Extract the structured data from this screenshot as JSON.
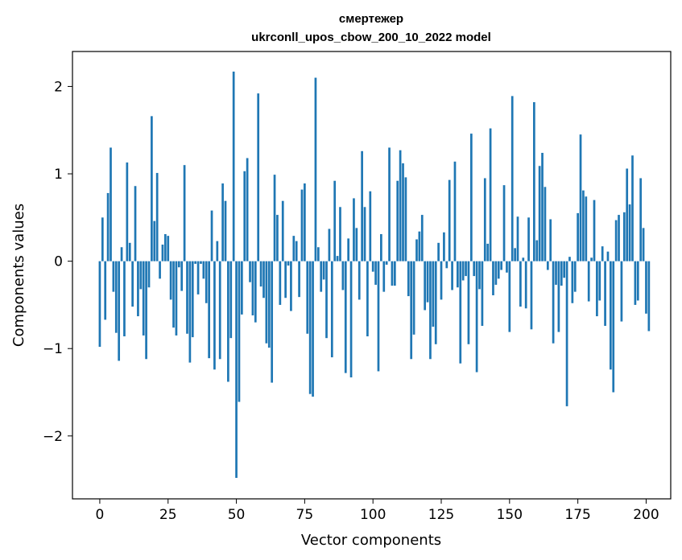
{
  "chart_data": {
    "type": "bar",
    "title": "смертежер",
    "subtitle": "ukrconll_upos_cbow_200_10_2022 model",
    "xlabel": "Vector components",
    "ylabel": "Components values",
    "xlim": [
      -10,
      209
    ],
    "ylim": [
      -2.72,
      2.4
    ],
    "xticks": [
      0,
      25,
      50,
      75,
      100,
      125,
      150,
      175,
      200
    ],
    "yticks": [
      -2,
      -1,
      0,
      1,
      2
    ],
    "ytick_labels": [
      "−2",
      "−1",
      "0",
      "1",
      "2"
    ],
    "bar_color": "#1f77b4",
    "grid": false,
    "legend": "none",
    "values": [
      -0.98,
      0.5,
      -0.67,
      0.78,
      1.3,
      -0.35,
      -0.82,
      -1.14,
      0.16,
      -0.86,
      1.13,
      0.21,
      -0.52,
      0.86,
      -0.63,
      -0.32,
      -0.85,
      -1.12,
      -0.3,
      1.66,
      0.46,
      1.01,
      -0.2,
      0.19,
      0.31,
      0.29,
      -0.44,
      -0.76,
      -0.85,
      -0.07,
      -0.34,
      1.1,
      -0.83,
      -1.16,
      -0.87,
      -0.03,
      -0.38,
      -0.03,
      -0.2,
      -0.48,
      -1.11,
      0.58,
      -1.24,
      0.23,
      -1.12,
      0.89,
      0.69,
      -1.38,
      -0.88,
      2.17,
      -2.48,
      -1.61,
      -0.61,
      1.03,
      1.18,
      -0.24,
      -0.62,
      -0.7,
      1.92,
      -0.29,
      -0.42,
      -0.94,
      -0.99,
      -1.39,
      0.99,
      0.53,
      -0.5,
      0.69,
      -0.42,
      -0.05,
      -0.57,
      0.29,
      0.23,
      -0.41,
      0.82,
      0.89,
      -0.83,
      -1.52,
      -1.55,
      2.1,
      0.16,
      -0.35,
      -0.21,
      -0.88,
      0.37,
      -1.1,
      0.92,
      0.06,
      0.62,
      -0.33,
      -1.28,
      0.26,
      -1.33,
      0.72,
      0.38,
      -0.44,
      1.26,
      0.62,
      -0.86,
      0.8,
      -0.12,
      -0.27,
      -1.26,
      0.31,
      -0.35,
      -0.04,
      1.3,
      -0.28,
      -0.28,
      0.92,
      1.27,
      1.12,
      0.96,
      -0.4,
      -1.12,
      -0.84,
      0.25,
      0.34,
      0.53,
      -0.56,
      -0.47,
      -1.12,
      -0.75,
      -0.95,
      0.21,
      -0.44,
      0.33,
      -0.08,
      0.93,
      -0.33,
      1.14,
      -0.3,
      -1.17,
      -0.22,
      -0.17,
      -0.95,
      1.46,
      -0.17,
      -1.27,
      -0.32,
      -0.74,
      0.95,
      0.2,
      1.52,
      -0.39,
      -0.27,
      -0.2,
      -0.1,
      0.87,
      -0.13,
      -0.81,
      1.89,
      0.15,
      0.51,
      -0.52,
      0.04,
      -0.54,
      0.5,
      -0.78,
      1.82,
      0.24,
      1.09,
      1.24,
      0.85,
      -0.1,
      0.48,
      -0.94,
      -0.27,
      -0.81,
      -0.28,
      -0.19,
      -1.66,
      0.05,
      -0.48,
      -0.35,
      0.55,
      1.45,
      0.81,
      0.74,
      -0.46,
      0.04,
      0.7,
      -0.63,
      -0.45,
      0.17,
      -0.74,
      0.11,
      -1.24,
      -1.5,
      0.47,
      0.53,
      -0.69,
      0.56,
      1.06,
      0.65,
      1.21,
      -0.5,
      -0.45,
      0.95,
      0.38,
      -0.6,
      -0.8
    ]
  }
}
